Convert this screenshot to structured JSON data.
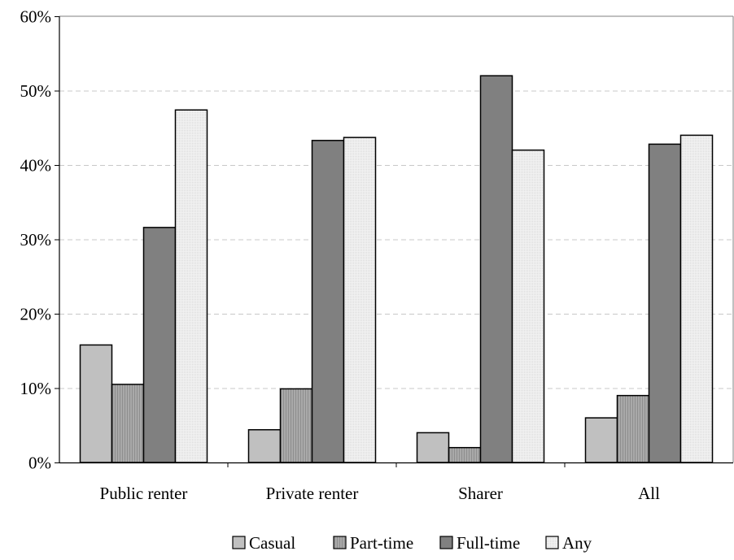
{
  "chart_data": {
    "type": "bar",
    "title": "",
    "xlabel": "",
    "ylabel": "",
    "categories": [
      "Public renter",
      "Private renter",
      "Sharer",
      "All"
    ],
    "series": [
      {
        "name": "Casual",
        "values": [
          15.8,
          4.4,
          4.0,
          6.0
        ],
        "color": "#c0c0c0"
      },
      {
        "name": "Part-time",
        "values": [
          10.5,
          9.9,
          2.0,
          9.0
        ],
        "color": "#a6a6a6"
      },
      {
        "name": "Full-time",
        "values": [
          31.6,
          43.3,
          52.0,
          42.8
        ],
        "color": "#808080"
      },
      {
        "name": "Any",
        "values": [
          47.4,
          43.7,
          42.0,
          44.0
        ],
        "color": "#ebebeb"
      }
    ],
    "ylim": [
      0,
      60
    ],
    "yticks": [
      0,
      10,
      20,
      30,
      40,
      50,
      60
    ],
    "ytick_labels": [
      "0%",
      "10%",
      "20%",
      "30%",
      "40%",
      "50%",
      "60%"
    ],
    "grid": "horizontal dashed",
    "legend_position": "bottom"
  }
}
